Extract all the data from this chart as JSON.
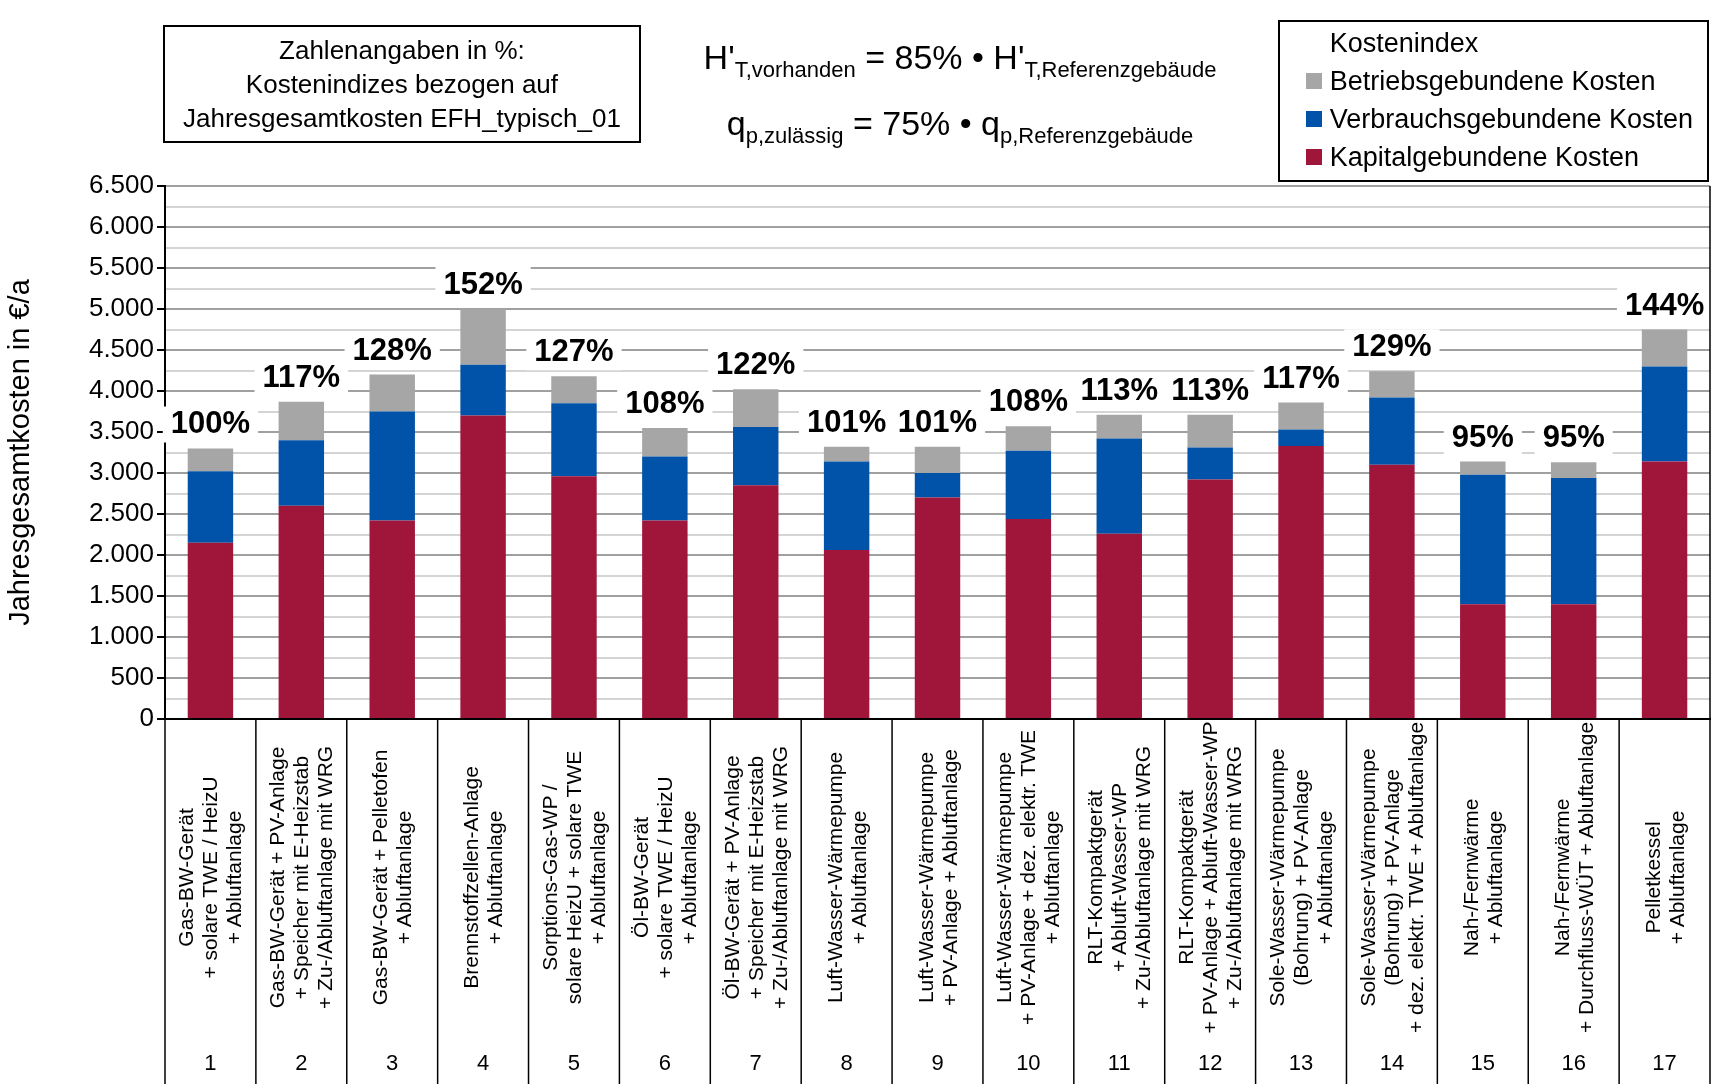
{
  "chart_data": {
    "type": "bar",
    "stacked": true,
    "ylabel": "Jahresgesamtkosten in €/a",
    "legend_title": "Kostenindex",
    "legend": "top right",
    "grid": "y",
    "annotations": [
      "Zahlenangaben in %:\nKostenindizes bezogen auf\nJahresgesamtkosten EFH_typisch_01",
      "H'$_{T,vorhanden}$ = 85% • H'$_{T,Referenzgebäude}$",
      "q$_{p,zulässig}$ = 75% • q$_{p,Referenzgebäude}$",
      {
        "text": "100%",
        "x": "Gas-BW-Gerät\n+ solare TWE / HeizU\n+ Abluftanlage\n1",
        "y": 3300
      },
      {
        "text": "117%",
        "x": "Gas-BW-Gerät + PV-Anlage\n+ Speicher mit E-Heizstab\n+ Zu-/Abluftanlage mit WRG\n2",
        "y": 3870
      },
      {
        "text": "128%",
        "x": "Gas-BW-Gerät + Pelletofen\n+ Abluftanlage\n3",
        "y": 4200
      },
      {
        "text": "152%",
        "x": "Brennstoffzellen-Anlage\n+ Abluftanlage\n4",
        "y": 5000
      },
      {
        "text": "127%",
        "x": "Sorptions-Gas-WP /\nsolare HeizU + solare TWE\n+ Abluftanlage\n5",
        "y": 4180
      },
      {
        "text": "108%",
        "x": "Öl-BW-Gerät\n+ solare TWE / HeizU\n+ Abluftanlage\n6",
        "y": 3550
      },
      {
        "text": "122%",
        "x": "Öl-BW-Gerät + PV-Anlage\n+ Speicher mit E-Heizstab\n+ Zu-/Abluftanlage mit WRG\n7",
        "y": 4020
      },
      {
        "text": "101%",
        "x": "Luft-Wasser-Wärmepumpe\n+ Abluftanlage\n8",
        "y": 3320
      },
      {
        "text": "101%",
        "x": "Luft-Wasser-Wärmepumpe\n+ PV-Anlage + Abluftanlage\n9",
        "y": 3320
      },
      {
        "text": "108%",
        "x": "Luft-Wasser-Wärmepumpe\n+ PV-Anlage + dez. elektr. TWE\n+ Abluftanlage\n10",
        "y": 3570
      },
      {
        "text": "113%",
        "x": "RLT-Kompaktgerät\n+ Abluft-Wasser-WP\n+ Zu-/Abluftanlage mit WRG\n11",
        "y": 3710
      },
      {
        "text": "113%",
        "x": "RLT-Kompaktgerät\n+ PV-Anlage + Abluft-Wasser-WP\n+ Zu-/Abluftanlage mit WRG\n12",
        "y": 3710
      },
      {
        "text": "117%",
        "x": "Sole-Wasser-Wärmepumpe\n(Bohrung) + PV-Anlage\n+ Abluftanlage\n13",
        "y": 3860
      },
      {
        "text": "129%",
        "x": "Sole-Wasser-Wärmepumpe\n(Bohrung) + PV-Anlage\n+ dez. elektr. TWE + Abluftanlage\n14",
        "y": 4240
      },
      {
        "text": "95%",
        "x": "Nah-/Fernwärme\n+ Abluftanlage\n15",
        "y": 3140
      },
      {
        "text": "95%",
        "x": "Nah-/Fernwärme\n+ Durchfluss-WÜT + Abluftanlage\n16",
        "y": 3130
      },
      {
        "text": "144%",
        "x": "Pelletkessel\n+ Abluftanlage\n17",
        "y": 4750
      }
    ],
    "categories": [
      "Gas-BW-Gerät\n+ solare TWE / HeizU\n+ Abluftanlage\n1",
      "Gas-BW-Gerät + PV-Anlage\n+ Speicher mit E-Heizstab\n+ Zu-/Abluftanlage mit WRG\n2",
      "Gas-BW-Gerät + Pelletofen\n+ Abluftanlage\n3",
      "Brennstoffzellen-Anlage\n+ Abluftanlage\n4",
      "Sorptions-Gas-WP /\nsolare HeizU + solare TWE\n+ Abluftanlage\n5",
      "Öl-BW-Gerät\n+ solare TWE / HeizU\n+ Abluftanlage\n6",
      "Öl-BW-Gerät + PV-Anlage\n+ Speicher mit E-Heizstab\n+ Zu-/Abluftanlage mit WRG\n7",
      "Luft-Wasser-Wärmepumpe\n+ Abluftanlage\n8",
      "Luft-Wasser-Wärmepumpe\n+ PV-Anlage + Abluftanlage\n9",
      "Luft-Wasser-Wärmepumpe\n+ PV-Anlage + dez. elektr. TWE\n+ Abluftanlage\n10",
      "RLT-Kompaktgerät\n+ Abluft-Wasser-WP\n+ Zu-/Abluftanlage mit WRG\n11",
      "RLT-Kompaktgerät\n+ PV-Anlage + Abluft-Wasser-WP\n+ Zu-/Abluftanlage mit WRG\n12",
      "Sole-Wasser-Wärmepumpe\n(Bohrung) + PV-Anlage\n+ Abluftanlage\n13",
      "Sole-Wasser-Wärmepumpe\n(Bohrung) + PV-Anlage\n+ dez. elektr. TWE + Abluftanlage\n14",
      "Nah-/Fernwärme\n+ Abluftanlage\n15",
      "Nah-/Fernwärme\n+ Durchfluss-WÜT + Abluftanlage\n16",
      "Pelletkessel\n+ Abluftanlage\n17"
    ],
    "series": [
      {
        "name": "Kapitalgebundene Kosten",
        "color": "#a0153a",
        "values": [
          2150,
          2600,
          2420,
          3700,
          2960,
          2420,
          2850,
          2060,
          2700,
          2440,
          2260,
          2920,
          3330,
          3100,
          1400,
          1400,
          3140
        ]
      },
      {
        "name": "Verbrauchsgebundene Kosten",
        "color": "#0053a8",
        "values": [
          870,
          800,
          1330,
          620,
          890,
          780,
          710,
          1080,
          300,
          830,
          1160,
          390,
          200,
          820,
          1580,
          1540,
          1160
        ]
      },
      {
        "name": "Betriebsgebundene Kosten",
        "color": "#a6a6a6",
        "values": [
          280,
          470,
          450,
          680,
          330,
          350,
          460,
          180,
          320,
          300,
          290,
          400,
          330,
          320,
          160,
          190,
          450
        ]
      }
    ],
    "ylim": [
      0,
      6500
    ],
    "yticks": [
      0,
      {
        "value": 250,
        "label": null
      },
      500,
      {
        "value": 750,
        "label": null
      },
      {
        "value": 1000,
        "label": "1.000"
      },
      {
        "value": 1250,
        "label": null
      },
      {
        "value": 1500,
        "label": "1.500"
      },
      {
        "value": 1750,
        "label": null
      },
      {
        "value": 2000,
        "label": "2.000"
      },
      {
        "value": 2250,
        "label": null
      },
      {
        "value": 2500,
        "label": "2.500"
      },
      {
        "value": 2750,
        "label": null
      },
      {
        "value": 3000,
        "label": "3.000"
      },
      {
        "value": 3250,
        "label": null
      },
      {
        "value": 3500,
        "label": "3.500"
      },
      {
        "value": 3750,
        "label": null
      },
      {
        "value": 4000,
        "label": "4.000"
      },
      {
        "value": 4250,
        "label": null
      },
      {
        "value": 4500,
        "label": "4.500"
      },
      {
        "value": 4750,
        "label": null
      },
      {
        "value": 5000,
        "label": "5.000"
      },
      {
        "value": 5250,
        "label": null
      },
      {
        "value": 5500,
        "label": "5.500"
      },
      {
        "value": 5750,
        "label": null
      },
      {
        "value": 6000,
        "label": "6.000"
      },
      {
        "value": 6250,
        "label": null
      },
      {
        "value": 6500,
        "label": "6.500"
      }
    ]
  }
}
